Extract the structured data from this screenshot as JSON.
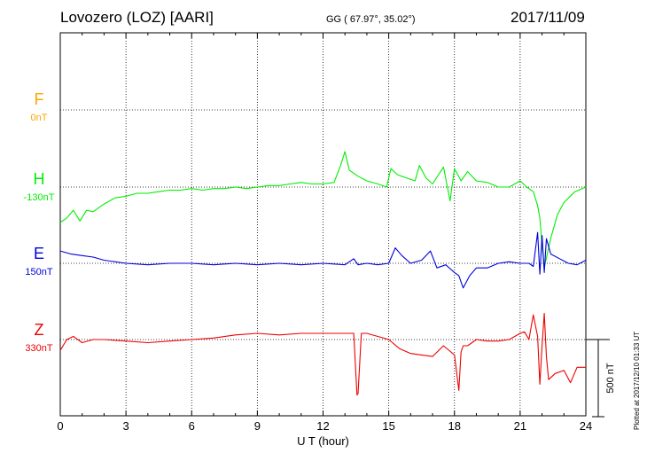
{
  "header": {
    "title": "Lovozero (LOZ)  [AARI]",
    "coords": "GG ( 67.97°,  35.02°)",
    "date": "2017/11/09"
  },
  "footer": {
    "plotted": "Plotted at 2017/12/10 01:33 UT"
  },
  "scale_bar": {
    "label": "500 nT",
    "value": 500
  },
  "chart_data": {
    "type": "line",
    "xlabel": "U T (hour)",
    "xlim": [
      0,
      24
    ],
    "xticks": [
      0,
      3,
      6,
      9,
      12,
      15,
      18,
      21,
      24
    ],
    "xtick_labels": [
      "0",
      "3",
      "6",
      "9",
      "12",
      "15",
      "18",
      "21",
      "24"
    ],
    "grid": true,
    "series": [
      {
        "name": "F",
        "baseline_label": "0nT",
        "color": "#ffa500",
        "x": [],
        "y": []
      },
      {
        "name": "H",
        "baseline_label": "-130nT",
        "color": "#00ee00",
        "x": [
          0,
          0.3,
          0.6,
          0.9,
          1.2,
          1.5,
          2.0,
          2.5,
          3.0,
          3.5,
          4.0,
          4.5,
          5.0,
          5.5,
          6.0,
          6.5,
          7.0,
          7.5,
          8.0,
          8.5,
          9.0,
          9.5,
          10.0,
          10.5,
          11.0,
          11.5,
          12.0,
          12.5,
          12.8,
          13.0,
          13.2,
          13.6,
          14.0,
          14.5,
          14.9,
          15.1,
          15.4,
          15.8,
          16.2,
          16.4,
          16.7,
          17.0,
          17.5,
          17.8,
          18.0,
          18.3,
          18.6,
          19.0,
          19.5,
          20.0,
          20.5,
          21.0,
          21.3,
          21.6,
          21.8,
          21.9,
          22.0,
          22.1,
          22.2,
          22.4,
          22.7,
          23.0,
          23.5,
          24.0
        ],
        "y": [
          -230,
          -200,
          -150,
          -220,
          -150,
          -160,
          -110,
          -70,
          -60,
          -40,
          -40,
          -30,
          -20,
          -20,
          -10,
          -20,
          -10,
          -10,
          0,
          -10,
          0,
          10,
          10,
          20,
          30,
          20,
          20,
          30,
          140,
          230,
          110,
          70,
          40,
          20,
          0,
          120,
          80,
          60,
          40,
          140,
          60,
          20,
          130,
          -90,
          120,
          40,
          100,
          40,
          30,
          0,
          0,
          40,
          0,
          -30,
          -120,
          -200,
          -380,
          -520,
          -460,
          -330,
          -180,
          -100,
          -30,
          0
        ]
      },
      {
        "name": "E",
        "baseline_label": "150nT",
        "color": "#0000dd",
        "x": [
          0,
          0.5,
          1.0,
          1.5,
          2.0,
          3.0,
          4.0,
          5.0,
          6.0,
          7.0,
          8.0,
          9.0,
          10.0,
          11.0,
          12.0,
          13.0,
          13.4,
          13.6,
          14.0,
          14.5,
          15.0,
          15.3,
          15.6,
          16.0,
          16.5,
          16.9,
          17.2,
          17.6,
          18.0,
          18.2,
          18.4,
          18.7,
          19.0,
          19.5,
          20.0,
          20.5,
          21.0,
          21.4,
          21.6,
          21.8,
          21.9,
          22.0,
          22.1,
          22.2,
          22.4,
          22.8,
          23.2,
          23.6,
          24.0
        ],
        "y": [
          80,
          60,
          50,
          40,
          20,
          0,
          -10,
          0,
          0,
          -10,
          0,
          -10,
          0,
          -10,
          0,
          -10,
          30,
          -10,
          0,
          -10,
          0,
          100,
          50,
          0,
          20,
          80,
          -30,
          -10,
          -60,
          -80,
          -160,
          -80,
          -30,
          -30,
          0,
          10,
          0,
          0,
          -20,
          200,
          -70,
          180,
          -60,
          160,
          60,
          30,
          0,
          -10,
          20
        ]
      },
      {
        "name": "Z",
        "baseline_label": "330nT",
        "color": "#ee0000",
        "x": [
          0,
          0.3,
          0.6,
          1.0,
          1.5,
          2.0,
          3.0,
          4.0,
          5.0,
          6.0,
          7.0,
          8.0,
          9.0,
          10.0,
          11.0,
          12.0,
          12.8,
          13.4,
          13.55,
          13.6,
          13.75,
          14.0,
          14.5,
          15.0,
          15.5,
          16.0,
          16.5,
          17.0,
          17.5,
          18.0,
          18.2,
          18.3,
          18.4,
          18.6,
          19.0,
          19.5,
          20.0,
          20.5,
          21.0,
          21.2,
          21.4,
          21.6,
          21.8,
          21.9,
          22.0,
          22.1,
          22.2,
          22.3,
          22.6,
          23.0,
          23.3,
          23.6,
          24.0
        ],
        "y": [
          -70,
          0,
          20,
          -20,
          0,
          0,
          -10,
          -20,
          -10,
          0,
          10,
          30,
          40,
          30,
          40,
          40,
          40,
          40,
          -360,
          -350,
          40,
          40,
          20,
          0,
          -60,
          -90,
          -100,
          -110,
          -40,
          -100,
          -330,
          -80,
          -40,
          -40,
          0,
          -10,
          -10,
          0,
          40,
          50,
          0,
          160,
          20,
          -290,
          -40,
          170,
          -110,
          -260,
          -220,
          -200,
          -280,
          -180,
          -180
        ]
      }
    ]
  }
}
